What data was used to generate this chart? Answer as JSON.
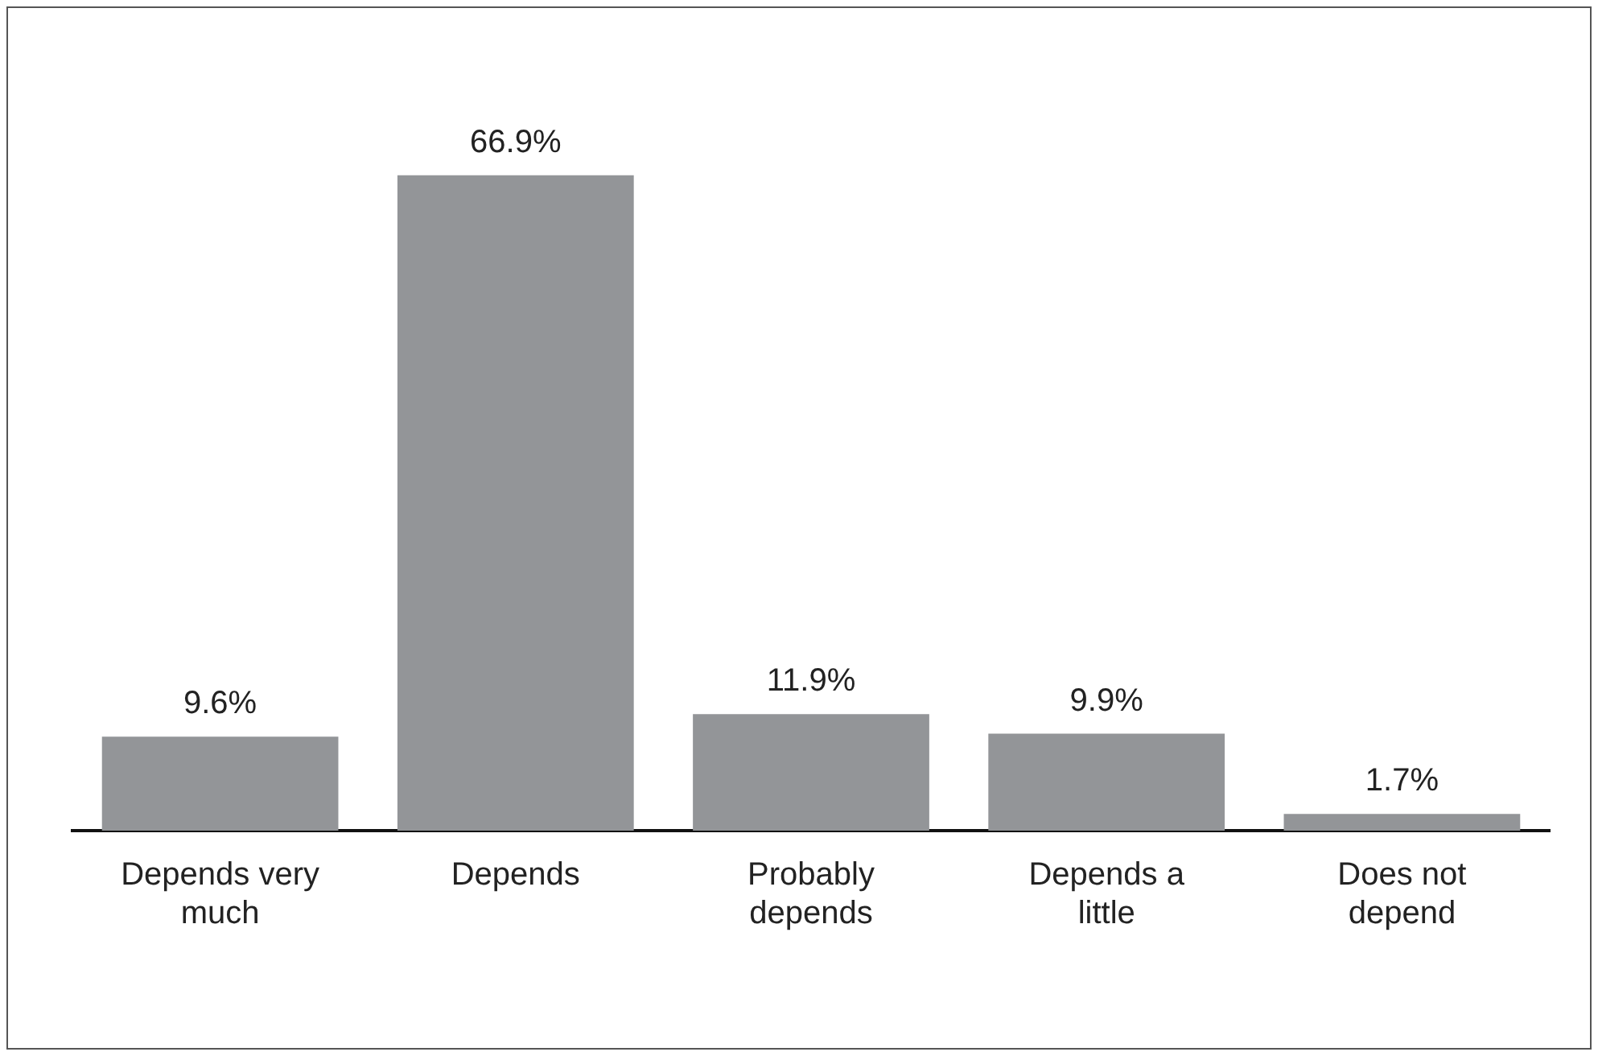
{
  "chart_data": {
    "type": "bar",
    "categories": [
      "Depends very much",
      "Depends",
      "Probably depends",
      "Depends a little",
      "Does not depend"
    ],
    "values": [
      9.6,
      66.9,
      11.9,
      9.9,
      1.7
    ],
    "color": "#939598",
    "value_labels": [
      "9.6%",
      "66.9%",
      "11.9%",
      "9.9%",
      "1.7%"
    ],
    "grid": false,
    "legend": false
  }
}
